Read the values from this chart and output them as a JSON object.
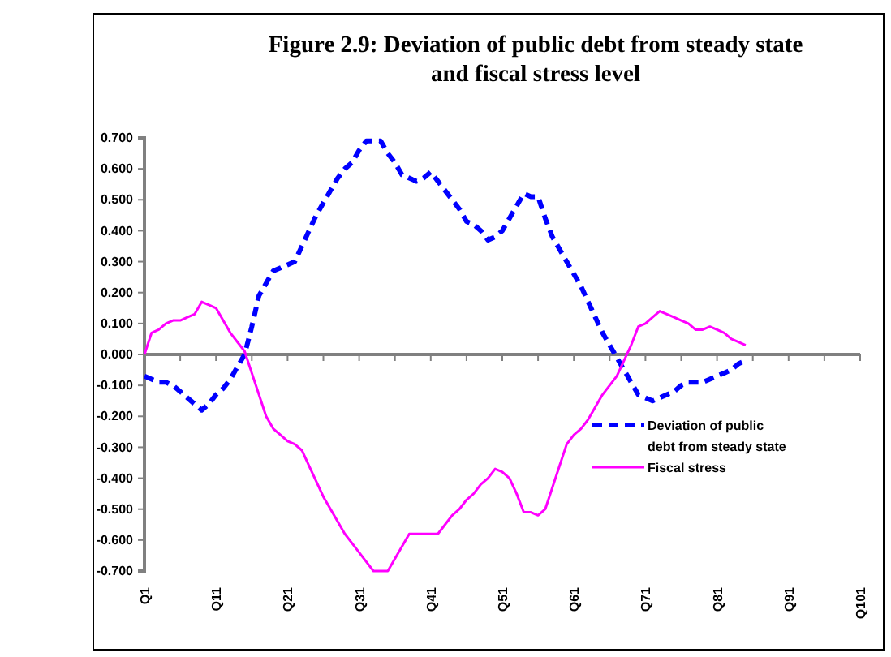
{
  "chart_data": {
    "type": "line",
    "title": "Figure 2.9:  Deviation of public debt from steady state\nand fiscal stress level",
    "categories": [
      "Q1",
      null,
      null,
      null,
      null,
      null,
      null,
      null,
      null,
      null,
      "Q11",
      null,
      null,
      null,
      null,
      null,
      null,
      null,
      null,
      null,
      "Q21",
      null,
      null,
      null,
      null,
      null,
      null,
      null,
      null,
      null,
      "Q31",
      null,
      null,
      null,
      null,
      null,
      null,
      null,
      null,
      null,
      "Q41",
      null,
      null,
      null,
      null,
      null,
      null,
      null,
      null,
      null,
      "Q51",
      null,
      null,
      null,
      null,
      null,
      null,
      null,
      null,
      null,
      "Q61",
      null,
      null,
      null,
      null,
      null,
      null,
      null,
      null,
      null,
      "Q71",
      null,
      null,
      null,
      null,
      null,
      null,
      null,
      null,
      null,
      "Q81",
      null,
      null,
      null,
      null,
      null,
      null,
      null,
      null,
      null,
      "Q91",
      null,
      null,
      null,
      null,
      null,
      null,
      null,
      null,
      null,
      "Q101"
    ],
    "ylim": [
      -0.7,
      0.7
    ],
    "yticks": [
      {
        "value": 0.7,
        "label": "0.700"
      },
      {
        "value": 0.6,
        "label": "0.600"
      },
      {
        "value": 0.5,
        "label": "0.500"
      },
      {
        "value": 0.4,
        "label": "0.400"
      },
      {
        "value": 0.3,
        "label": "0.300"
      },
      {
        "value": 0.2,
        "label": "0.200"
      },
      {
        "value": 0.1,
        "label": "0.100"
      },
      {
        "value": 0,
        "label": "0.000"
      },
      {
        "value": -0.1,
        "label": "-0.100"
      },
      {
        "value": -0.2,
        "label": "-0.200"
      },
      {
        "value": -0.3,
        "label": "-0.300"
      },
      {
        "value": -0.4,
        "label": "-0.400"
      },
      {
        "value": -0.5,
        "label": "-0.500"
      },
      {
        "value": -0.6,
        "label": "-0.600"
      },
      {
        "value": -0.7,
        "label": "-0.700"
      }
    ],
    "legend": "right",
    "series": [
      {
        "name": "Deviation of public debt from steady state",
        "color": "#0000ff",
        "line_style": "dashed",
        "values": [
          -0.07,
          -0.08,
          -0.09,
          -0.09,
          -0.1,
          -0.12,
          -0.14,
          -0.16,
          -0.18,
          -0.16,
          -0.13,
          -0.11,
          -0.08,
          -0.04,
          0,
          0.09,
          0.19,
          0.23,
          0.27,
          0.28,
          0.29,
          0.3,
          0.35,
          0.4,
          0.45,
          0.49,
          0.53,
          0.57,
          0.6,
          0.62,
          0.66,
          0.69,
          0.69,
          0.69,
          0.65,
          0.62,
          0.58,
          0.57,
          0.56,
          0.57,
          0.59,
          0.56,
          0.53,
          0.5,
          0.47,
          0.43,
          0.42,
          0.4,
          0.37,
          0.38,
          0.4,
          0.44,
          0.48,
          0.52,
          0.51,
          0.51,
          0.44,
          0.38,
          0.34,
          0.3,
          0.26,
          0.22,
          0.17,
          0.12,
          0.07,
          0.03,
          -0.01,
          -0.05,
          -0.09,
          -0.13,
          -0.14,
          -0.15,
          -0.14,
          -0.13,
          -0.12,
          -0.1,
          -0.09,
          -0.09,
          -0.09,
          -0.08,
          -0.07,
          -0.06,
          -0.05,
          -0.03,
          -0.02,
          null,
          null,
          null,
          null,
          null,
          null,
          null,
          null,
          null,
          null,
          null,
          null,
          null,
          null,
          null,
          null
        ]
      },
      {
        "name": "Fiscal stress",
        "color": "#ff00ff",
        "line_style": "solid",
        "values": [
          0,
          0.07,
          0.08,
          0.1,
          0.11,
          0.11,
          0.12,
          0.13,
          0.17,
          0.16,
          0.15,
          0.11,
          0.07,
          0.04,
          0.01,
          -0.06,
          -0.13,
          -0.2,
          -0.24,
          -0.26,
          -0.28,
          -0.29,
          -0.31,
          -0.36,
          -0.41,
          -0.46,
          -0.5,
          -0.54,
          -0.58,
          -0.61,
          -0.64,
          -0.67,
          -0.7,
          -0.7,
          -0.7,
          -0.66,
          -0.62,
          -0.58,
          -0.58,
          -0.58,
          -0.58,
          -0.58,
          -0.55,
          -0.52,
          -0.5,
          -0.47,
          -0.45,
          -0.42,
          -0.4,
          -0.37,
          -0.38,
          -0.4,
          -0.45,
          -0.51,
          -0.51,
          -0.52,
          -0.5,
          -0.43,
          -0.36,
          -0.29,
          -0.26,
          -0.24,
          -0.21,
          -0.17,
          -0.13,
          -0.1,
          -0.07,
          -0.02,
          0.03,
          0.09,
          0.1,
          0.12,
          0.14,
          0.13,
          0.12,
          0.11,
          0.1,
          0.08,
          0.08,
          0.09,
          0.08,
          0.07,
          0.05,
          0.04,
          0.03,
          null,
          null,
          null,
          null,
          null,
          null,
          null,
          null,
          null,
          null,
          null,
          null,
          null,
          null,
          null,
          null
        ]
      }
    ]
  }
}
